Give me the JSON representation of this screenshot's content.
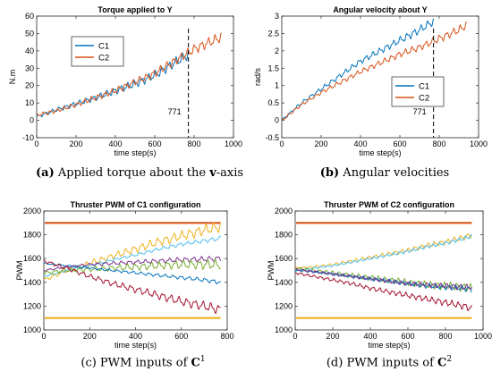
{
  "captions": {
    "a": {
      "letter": "(a)",
      "text": " Applied torque about the ",
      "bold": "v",
      "suffix": "-axis"
    },
    "b": {
      "letter": "(b)",
      "text": " Angular velocities"
    },
    "c": {
      "text": "(c) PWM inputs of ",
      "bold": "C",
      "sup": "1"
    },
    "d": {
      "text": "(d) PWM inputs of ",
      "bold": "C",
      "sup": "2"
    }
  },
  "colors": {
    "C1": "#0072BD",
    "C2": "#D95319",
    "pwm_top": "#D95319",
    "pwm_bottom": "#EDB120"
  },
  "chart_data": [
    {
      "id": "a",
      "type": "line",
      "title": "Torque applied to Y",
      "xlabel": "time step(s)",
      "ylabel": "N.m",
      "xlim": [
        0,
        1000
      ],
      "ylim": [
        -10,
        60
      ],
      "xticks": [
        0,
        200,
        400,
        600,
        800,
        1000
      ],
      "yticks": [
        -10,
        0,
        10,
        20,
        30,
        40,
        50,
        60
      ],
      "legend": {
        "placement": "top-left",
        "entries": [
          "C1",
          "C2"
        ]
      },
      "vline": {
        "x": 771,
        "label": "771"
      },
      "series": [
        {
          "name": "C1",
          "color": "#0072BD",
          "x": [
            0,
            100,
            200,
            300,
            400,
            500,
            600,
            700,
            771
          ],
          "y": [
            2,
            6,
            9.5,
            13,
            17,
            21,
            26,
            33,
            38
          ],
          "amplitude": 2.5
        },
        {
          "name": "C2",
          "color": "#D95319",
          "x": [
            0,
            100,
            200,
            300,
            400,
            500,
            600,
            700,
            800,
            900,
            940
          ],
          "y": [
            3,
            5.5,
            9,
            13,
            17,
            22,
            27,
            34,
            41,
            46,
            48
          ],
          "amplitude": 2.5
        }
      ]
    },
    {
      "id": "b",
      "type": "line",
      "title": "Angular velocity about Y",
      "xlabel": "time step(s)",
      "ylabel": "rad/s",
      "xlim": [
        0,
        1000
      ],
      "ylim": [
        -0.5,
        3
      ],
      "xticks": [
        0,
        200,
        400,
        600,
        800,
        1000
      ],
      "yticks": [
        -0.5,
        0,
        0.5,
        1,
        1.5,
        2,
        2.5,
        3
      ],
      "legend": {
        "placement": "bottom-right",
        "entries": [
          "C1",
          "C2"
        ]
      },
      "vline": {
        "x": 771,
        "label": "771"
      },
      "series": [
        {
          "name": "C1",
          "color": "#0072BD",
          "x": [
            0,
            100,
            200,
            300,
            400,
            500,
            600,
            700,
            771
          ],
          "y": [
            0,
            0.5,
            0.9,
            1.3,
            1.7,
            2.0,
            2.3,
            2.6,
            2.85
          ],
          "amplitude": 0.1
        },
        {
          "name": "C2",
          "color": "#D95319",
          "x": [
            0,
            100,
            200,
            300,
            400,
            500,
            600,
            700,
            800,
            900,
            940
          ],
          "y": [
            0,
            0.45,
            0.8,
            1.1,
            1.4,
            1.65,
            1.9,
            2.1,
            2.35,
            2.6,
            2.75
          ],
          "amplitude": 0.1
        }
      ]
    },
    {
      "id": "c",
      "type": "line",
      "title": "Thruster PWM of C1 configuration",
      "xlabel": "time step(s)",
      "ylabel": "PWM",
      "xlim": [
        0,
        800
      ],
      "ylim": [
        1000,
        2000
      ],
      "xticks": [
        0,
        200,
        400,
        600,
        800
      ],
      "yticks": [
        1000,
        1200,
        1400,
        1600,
        1800,
        2000
      ],
      "limits": [
        {
          "y": 1900,
          "color": "#D95319"
        },
        {
          "y": 1100,
          "color": "#EDB120"
        }
      ],
      "series": [
        {
          "color": "#EDB120",
          "x": [
            0,
            100,
            200,
            300,
            400,
            500,
            600,
            700,
            771
          ],
          "y": [
            1420,
            1500,
            1560,
            1620,
            1680,
            1740,
            1790,
            1840,
            1870
          ],
          "amplitude": 40
        },
        {
          "color": "#4DBEEE",
          "x": [
            0,
            100,
            200,
            300,
            400,
            500,
            600,
            700,
            771
          ],
          "y": [
            1450,
            1500,
            1540,
            1590,
            1630,
            1680,
            1720,
            1750,
            1770
          ],
          "amplitude": 15
        },
        {
          "color": "#7E2F8E",
          "x": [
            0,
            100,
            200,
            300,
            400,
            500,
            600,
            700,
            771
          ],
          "y": [
            1500,
            1530,
            1550,
            1560,
            1570,
            1580,
            1590,
            1595,
            1600
          ],
          "amplitude": 20
        },
        {
          "color": "#77AC30",
          "x": [
            0,
            100,
            200,
            300,
            400,
            500,
            600,
            700,
            771
          ],
          "y": [
            1480,
            1500,
            1510,
            1520,
            1530,
            1540,
            1550,
            1550,
            1550
          ],
          "amplitude": 35
        },
        {
          "color": "#0072BD",
          "x": [
            0,
            100,
            200,
            300,
            400,
            500,
            600,
            700,
            771
          ],
          "y": [
            1560,
            1540,
            1520,
            1500,
            1480,
            1460,
            1440,
            1420,
            1400
          ],
          "amplitude": 15
        },
        {
          "color": "#A2142F",
          "x": [
            0,
            100,
            200,
            300,
            400,
            500,
            600,
            700,
            771
          ],
          "y": [
            1580,
            1520,
            1450,
            1390,
            1340,
            1290,
            1240,
            1200,
            1170
          ],
          "amplitude": 35
        }
      ]
    },
    {
      "id": "d",
      "type": "line",
      "title": "Thruster PWM of C2 configuration",
      "xlabel": "time step(s)",
      "ylabel": "PWM",
      "xlim": [
        0,
        1000
      ],
      "ylim": [
        1000,
        2000
      ],
      "xticks": [
        0,
        200,
        400,
        600,
        800,
        1000
      ],
      "yticks": [
        1000,
        1200,
        1400,
        1600,
        1800,
        2000
      ],
      "limits": [
        {
          "y": 1900,
          "color": "#D95319"
        },
        {
          "y": 1100,
          "color": "#EDB120"
        }
      ],
      "series": [
        {
          "color": "#EDB120",
          "x": [
            0,
            100,
            200,
            300,
            400,
            500,
            600,
            700,
            800,
            900,
            940
          ],
          "y": [
            1520,
            1530,
            1550,
            1580,
            1610,
            1640,
            1670,
            1710,
            1740,
            1780,
            1800
          ],
          "amplitude": 20
        },
        {
          "color": "#4DBEEE",
          "x": [
            0,
            100,
            200,
            300,
            400,
            500,
            600,
            700,
            800,
            900,
            940
          ],
          "y": [
            1500,
            1520,
            1540,
            1570,
            1600,
            1630,
            1660,
            1700,
            1730,
            1770,
            1790
          ],
          "amplitude": 15
        },
        {
          "color": "#77AC30",
          "x": [
            0,
            100,
            200,
            300,
            400,
            500,
            600,
            700,
            800,
            900,
            940
          ],
          "y": [
            1520,
            1500,
            1480,
            1460,
            1440,
            1420,
            1400,
            1380,
            1370,
            1360,
            1350
          ],
          "amplitude": 30
        },
        {
          "color": "#0072BD",
          "x": [
            0,
            100,
            200,
            300,
            400,
            500,
            600,
            700,
            800,
            900,
            940
          ],
          "y": [
            1500,
            1490,
            1470,
            1450,
            1430,
            1410,
            1390,
            1370,
            1360,
            1350,
            1340
          ],
          "amplitude": 20
        },
        {
          "color": "#7E2F8E",
          "x": [
            0,
            100,
            200,
            300,
            400,
            500,
            600,
            700,
            800,
            900,
            940
          ],
          "y": [
            1510,
            1490,
            1470,
            1450,
            1430,
            1410,
            1390,
            1380,
            1370,
            1360,
            1360
          ],
          "amplitude": 20
        },
        {
          "color": "#A2142F",
          "x": [
            0,
            100,
            200,
            300,
            400,
            500,
            600,
            700,
            800,
            900,
            940
          ],
          "y": [
            1480,
            1450,
            1420,
            1390,
            1350,
            1320,
            1290,
            1260,
            1230,
            1200,
            1180
          ],
          "amplitude": 25
        }
      ]
    }
  ]
}
